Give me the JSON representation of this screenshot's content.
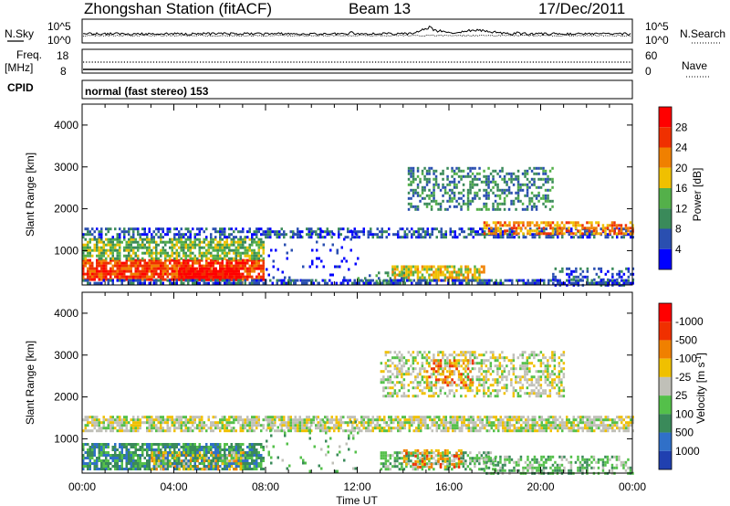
{
  "header": {
    "station": "Zhongshan Station (fitACF)",
    "beam": "Beam 13",
    "date": "17/Dec/2011"
  },
  "sky_panel": {
    "left_label": "N.Sky",
    "right_label": "N.Search",
    "left_ticks": [
      "10^5",
      "10^0"
    ],
    "right_ticks": [
      "10^5",
      "10^0"
    ]
  },
  "freq_panel": {
    "left_label_top": "Freq.",
    "left_label_bottom": "[MHz]",
    "right_label": "Nave",
    "left_ticks": [
      "18",
      "8"
    ],
    "right_ticks": [
      "60",
      "0"
    ]
  },
  "cpid_panel": {
    "label": "CPID",
    "text": "normal (fast stereo) 153"
  },
  "axes": {
    "ylabel": "Slant Range [km]",
    "xlabel": "Time UT",
    "x_ticks": [
      "00:00",
      "04:00",
      "08:00",
      "12:00",
      "16:00",
      "20:00",
      "00:00"
    ],
    "y_ticks": [
      "1000",
      "2000",
      "3000",
      "4000"
    ]
  },
  "chart_data": [
    {
      "type": "heatmap",
      "title": "",
      "x_range_hours": [
        0,
        24
      ],
      "y_range_km": [
        180,
        4500
      ],
      "colorbar_label": "Power [dB]",
      "colorbar_ticks": [
        "4",
        "8",
        "12",
        "16",
        "20",
        "24",
        "28"
      ],
      "colors": [
        "#0000ff",
        "#2a4fb0",
        "#3a8a5a",
        "#54b04a",
        "#f0c000",
        "#f08000",
        "#f03000",
        "#ff0000"
      ],
      "regions": [
        {
          "t0": 0.0,
          "t1": 7.9,
          "r0": 300,
          "r1": 800,
          "level": 6,
          "density": 0.85
        },
        {
          "t0": 4.2,
          "t1": 6.8,
          "r0": 300,
          "r1": 600,
          "level": 7,
          "density": 0.95
        },
        {
          "t0": 0.0,
          "t1": 7.9,
          "r0": 800,
          "r1": 1300,
          "level": 3,
          "density": 0.7
        },
        {
          "t0": 0.0,
          "t1": 24.0,
          "r0": 1300,
          "r1": 1550,
          "level": 1,
          "density": 0.55
        },
        {
          "t0": 13.5,
          "t1": 17.5,
          "r0": 300,
          "r1": 650,
          "level": 4,
          "density": 0.7
        },
        {
          "t0": 17.5,
          "t1": 24.0,
          "r0": 1400,
          "r1": 1700,
          "level": 5,
          "density": 0.6
        },
        {
          "t0": 14.2,
          "t1": 20.5,
          "r0": 2000,
          "r1": 3000,
          "level": 2,
          "density": 0.45
        },
        {
          "t0": 12.0,
          "t1": 14.0,
          "r0": 200,
          "r1": 500,
          "level": 2,
          "density": 0.3
        },
        {
          "t0": 8.0,
          "t1": 12.0,
          "r0": 200,
          "r1": 1500,
          "level": 0,
          "density": 0.08
        },
        {
          "t0": 20.5,
          "t1": 24.0,
          "r0": 200,
          "r1": 600,
          "level": 1,
          "density": 0.35
        },
        {
          "t0": 0.0,
          "t1": 24.0,
          "r0": 200,
          "r1": 320,
          "level": 1,
          "density": 0.65
        }
      ]
    },
    {
      "type": "heatmap",
      "title": "",
      "x_range_hours": [
        0,
        24
      ],
      "y_range_km": [
        180,
        4500
      ],
      "colorbar_label": "Velocity [m s-1]",
      "colorbar_ticks": [
        "1000",
        "500",
        "100",
        "25",
        "-25",
        "-100",
        "-500",
        "-1000"
      ],
      "colors": [
        "#2040b0",
        "#3070c8",
        "#3a8a5a",
        "#54c04a",
        "#c0c0b8",
        "#f0c000",
        "#f08000",
        "#f03000",
        "#ff0000"
      ],
      "regions": [
        {
          "t0": 0.0,
          "t1": 7.9,
          "r0": 300,
          "r1": 900,
          "level": 2,
          "density": 0.8
        },
        {
          "t0": 3.0,
          "t1": 7.0,
          "r0": 300,
          "r1": 700,
          "level": 5,
          "density": 0.35
        },
        {
          "t0": 0.0,
          "t1": 24.0,
          "r0": 1200,
          "r1": 1550,
          "level": 4,
          "density": 0.75
        },
        {
          "t0": 13.0,
          "t1": 21.0,
          "r0": 2000,
          "r1": 3100,
          "level": 4,
          "density": 0.45
        },
        {
          "t0": 15.0,
          "t1": 17.0,
          "r0": 2300,
          "r1": 2900,
          "level": 6,
          "density": 0.35
        },
        {
          "t0": 13.0,
          "t1": 18.0,
          "r0": 300,
          "r1": 700,
          "level": 3,
          "density": 0.6
        },
        {
          "t0": 14.0,
          "t1": 16.5,
          "r0": 350,
          "r1": 750,
          "level": 6,
          "density": 0.45
        },
        {
          "t0": 17.5,
          "t1": 24.0,
          "r0": 200,
          "r1": 600,
          "level": 3,
          "density": 0.5
        },
        {
          "t0": 8.0,
          "t1": 12.0,
          "r0": 200,
          "r1": 1500,
          "level": 3,
          "density": 0.08
        }
      ]
    }
  ]
}
